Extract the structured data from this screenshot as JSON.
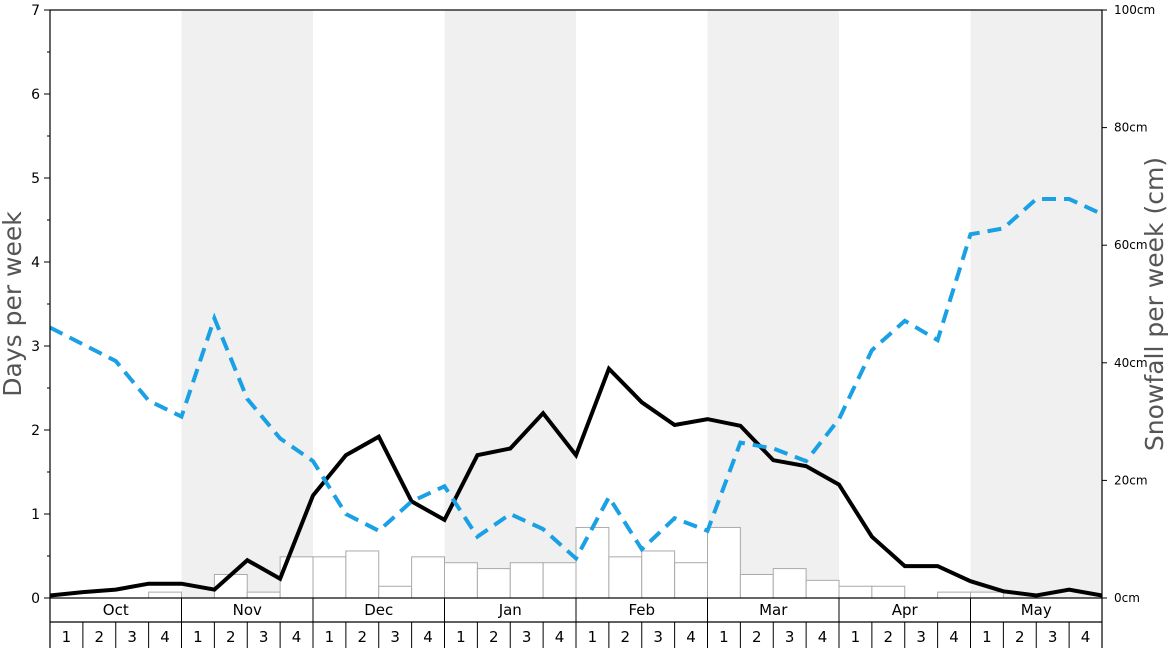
{
  "chart_data": {
    "type": "bar",
    "ylabel_left": "Days per week",
    "ylabel_right": "Snowfall per week (cm)",
    "ylim_left": [
      0,
      7
    ],
    "ylim_right": [
      0,
      100
    ],
    "left_ticks": [
      "0",
      "1",
      "2",
      "3",
      "4",
      "5",
      "6",
      "7"
    ],
    "right_ticks": [
      "0cm",
      "20cm",
      "40cm",
      "60cm",
      "80cm",
      "100cm"
    ],
    "months": [
      "Oct",
      "Nov",
      "Dec",
      "Jan",
      "Feb",
      "Mar",
      "Apr",
      "May"
    ],
    "week_labels": [
      "1",
      "2",
      "3",
      "4"
    ],
    "grid": false,
    "colors": {
      "snowfall_bar_fill": "#ffffff",
      "snowfall_bar_stroke": "#aaaaaa",
      "days_line": "#000000",
      "dashed_line": "#1aa0e4",
      "shaded_month": "#f0f0f0"
    },
    "series": [
      {
        "axis": "right",
        "kind": "bar",
        "values": [
          0,
          0,
          0,
          1,
          0,
          4,
          1,
          7,
          7,
          8,
          2,
          7,
          6,
          5,
          6,
          6,
          12,
          7,
          8,
          6,
          12,
          4,
          5,
          3,
          2,
          2,
          0,
          1,
          1,
          0,
          0,
          0
        ]
      },
      {
        "axis": "left",
        "kind": "line",
        "style": "solid",
        "values": [
          0.03,
          0.07,
          0.1,
          0.17,
          0.17,
          0.1,
          0.45,
          0.23,
          1.22,
          1.7,
          1.92,
          1.15,
          0.93,
          1.7,
          1.78,
          2.2,
          1.7,
          2.73,
          2.33,
          2.06,
          2.13,
          2.05,
          1.64,
          1.57,
          1.35,
          0.73,
          0.38,
          0.38,
          0.2,
          0.08,
          0.03,
          0.1,
          0.03
        ]
      },
      {
        "axis": "left",
        "kind": "line",
        "style": "dashed",
        "values": [
          3.22,
          3.02,
          2.82,
          2.35,
          2.16,
          3.33,
          2.37,
          1.9,
          1.63,
          1.0,
          0.8,
          1.15,
          1.33,
          0.73,
          1.0,
          0.82,
          0.47,
          1.2,
          0.58,
          0.95,
          0.8,
          1.85,
          1.78,
          1.63,
          2.13,
          2.95,
          3.3,
          3.07,
          4.33,
          4.4,
          4.75,
          4.75,
          4.57
        ]
      }
    ]
  }
}
